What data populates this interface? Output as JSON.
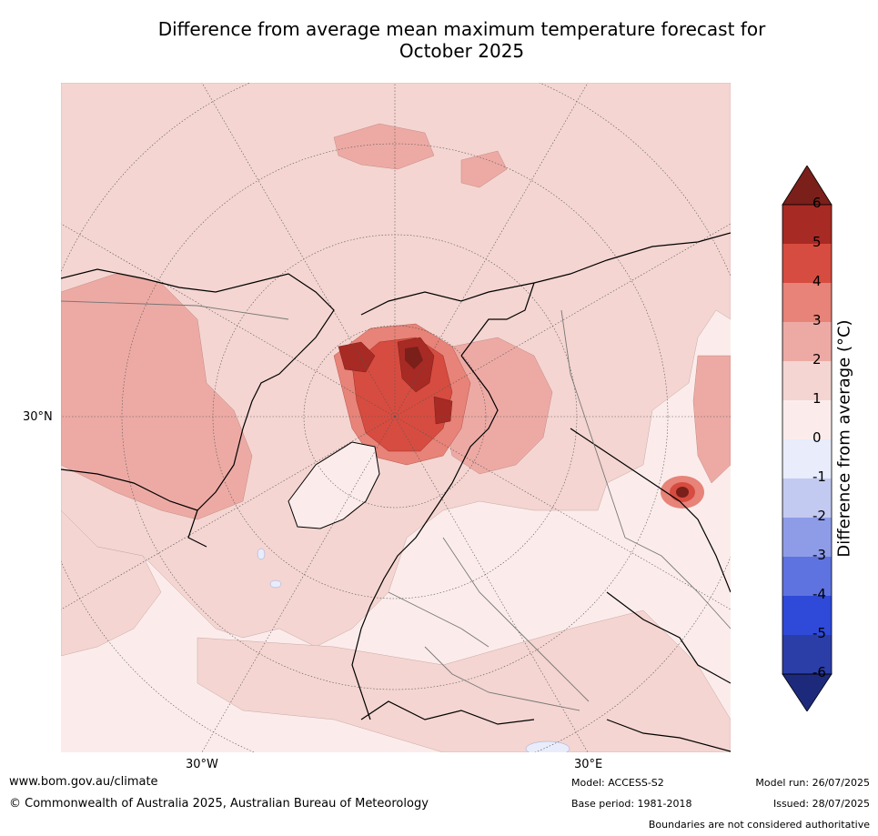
{
  "title": {
    "line1": "Difference from average mean maximum temperature forecast for",
    "line2": "October 2025"
  },
  "map": {
    "projection": "north-polar-stereographic",
    "graticule_labels": {
      "lat_30n": "30°N",
      "lon_30w": "30°W",
      "lon_30e": "30°E"
    },
    "anomaly_regions": [
      {
        "name": "arctic-ocean-core",
        "anomaly": "5 to 6+"
      },
      {
        "name": "north-america-interior",
        "anomaly": "2 to 3"
      },
      {
        "name": "siberia",
        "anomaly": "2 to 3"
      },
      {
        "name": "east-asia-hotspot",
        "anomaly": "5 to 6+"
      },
      {
        "name": "greenland",
        "anomaly": "0 to 1"
      }
    ]
  },
  "colorbar": {
    "title": "Difference from average (°C)",
    "ticks": [
      "6",
      "5",
      "4",
      "3",
      "2",
      "1",
      "0",
      "-1",
      "-2",
      "-3",
      "-4",
      "-5",
      "-6"
    ],
    "colors": {
      "gt6": "#7a1f1a",
      "5_6": "#a82a24",
      "4_5": "#d74c40",
      "3_4": "#e78378",
      "2_3": "#edaaa4",
      "1_2": "#f4d5d1",
      "0_1": "#fbeceb",
      "m1_0": "#e8ecfb",
      "m2_m1": "#c3caf1",
      "m3_m2": "#8e9ce8",
      "m4_m3": "#5e73df",
      "m5_m4": "#2f4ad9",
      "m6_m5": "#2b3ea8",
      "lt_m6": "#1d2a7c"
    }
  },
  "footer": {
    "website": "www.bom.gov.au/climate",
    "copyright": "© Commonwealth of Australia 2025, Australian Bureau of Meteorology",
    "model": "Model: ACCESS-S2",
    "base_period": "Base period: 1981-2018",
    "model_run": "Model run: 26/07/2025",
    "issued": "Issued: 28/07/2025",
    "disclaimer": "Boundaries are not considered authoritative"
  }
}
